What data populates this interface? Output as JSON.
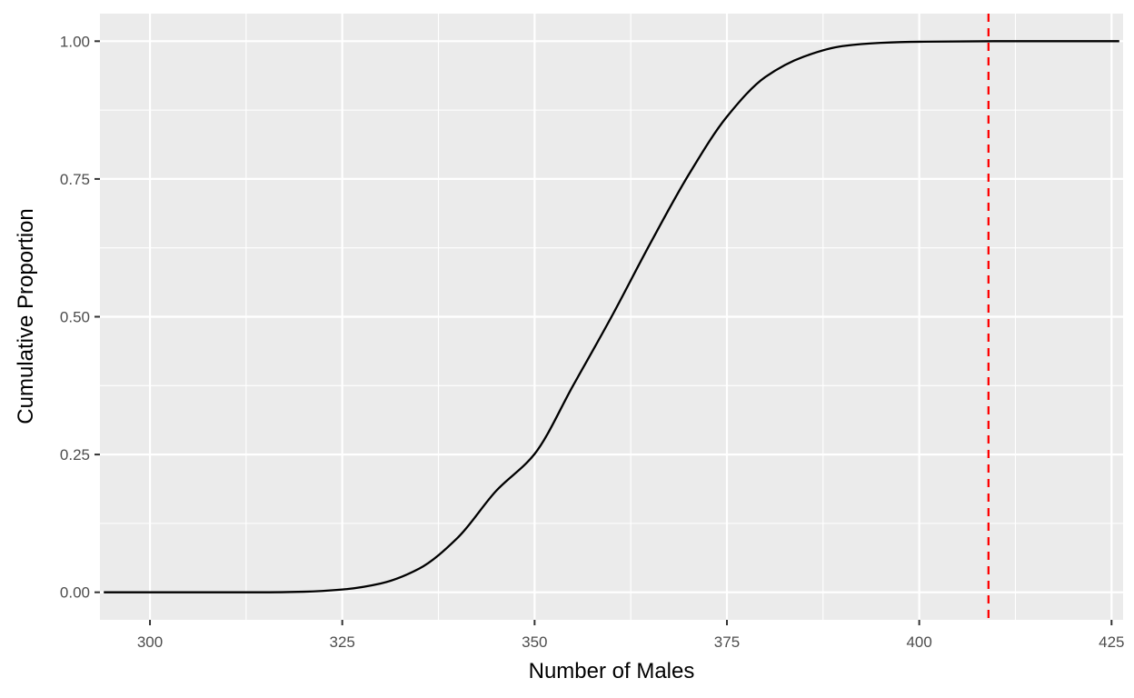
{
  "chart_data": {
    "type": "line",
    "xlabel": "Number of Males",
    "ylabel": "Cumulative Proportion",
    "xlim": [
      293.5,
      426.5
    ],
    "ylim": [
      -0.05,
      1.05
    ],
    "x_ticks": [
      300,
      325,
      350,
      375,
      400,
      425
    ],
    "x_tick_labels": [
      "300",
      "325",
      "350",
      "375",
      "400",
      "425"
    ],
    "y_ticks": [
      0,
      0.25,
      0.5,
      0.75,
      1.0
    ],
    "y_tick_labels": [
      "0.00",
      "0.25",
      "0.50",
      "0.75",
      "1.00"
    ],
    "grid": true,
    "series": [
      {
        "x": [
          294,
          305,
          315,
          320,
          325,
          330,
          335,
          340,
          345,
          350,
          355,
          360,
          365,
          370,
          375,
          380,
          385,
          390,
          395,
          400,
          410,
          426
        ],
        "y": [
          0.0,
          0.0,
          0.0,
          0.001,
          0.005,
          0.016,
          0.043,
          0.099,
          0.184,
          0.251,
          0.375,
          0.5,
          0.632,
          0.757,
          0.863,
          0.935,
          0.972,
          0.991,
          0.997,
          0.999,
          1.0,
          1.0
        ]
      }
    ],
    "reference_line": {
      "orientation": "vertical",
      "x": 409,
      "color": "#ff0000",
      "style": "dashed"
    },
    "colors": {
      "panel": "#ebebeb",
      "grid": "#ffffff",
      "line": "#000000"
    }
  }
}
